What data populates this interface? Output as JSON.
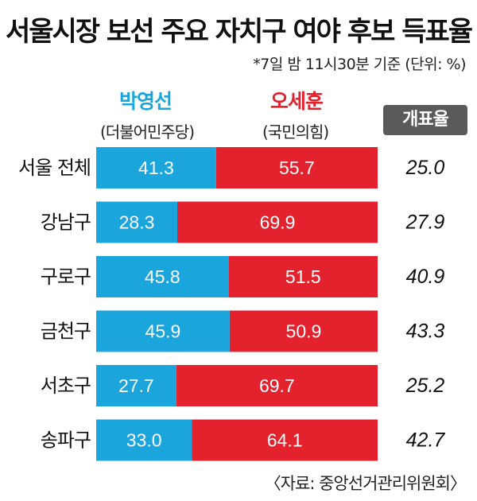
{
  "title": "서울시장 보선 주요 자치구 여야 후보 득표율",
  "note": "*7일 밤 11시30분 기준 (단위: %)",
  "candidates": {
    "a": {
      "name": "박영선",
      "party": "(더불어민주당)",
      "color": "#1aa5dc"
    },
    "b": {
      "name": "오세훈",
      "party": "(국민의힘)",
      "color": "#e3222e"
    }
  },
  "rate_header": "개표율",
  "source": "〈자료: 중앙선거관리위원회〉",
  "chart_data": {
    "type": "bar",
    "stacked": true,
    "orientation": "horizontal",
    "categories": [
      "서울 전체",
      "강남구",
      "구로구",
      "금천구",
      "서초구",
      "송파구"
    ],
    "series": [
      {
        "name": "박영선",
        "values": [
          41.3,
          28.3,
          45.8,
          45.9,
          27.7,
          33.0
        ],
        "color": "#1aa5dc"
      },
      {
        "name": "오세훈",
        "values": [
          55.7,
          69.9,
          51.5,
          50.9,
          69.7,
          64.1
        ],
        "color": "#e3222e"
      }
    ],
    "count_rate": [
      25.0,
      27.9,
      40.9,
      43.3,
      25.2,
      42.7
    ]
  }
}
